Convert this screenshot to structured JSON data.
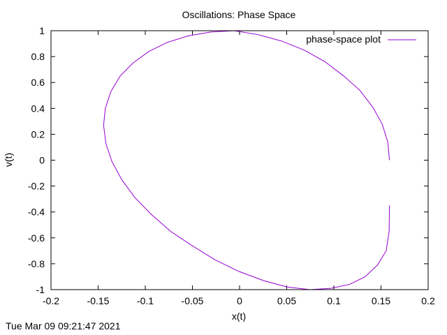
{
  "timestamp": "Tue Mar 09 09:21:47 2021",
  "chart_data": {
    "type": "line",
    "title": "Oscillations: Phase Space",
    "xlabel": "x(t)",
    "ylabel": "v(t)",
    "xlim": [
      -0.2,
      0.2
    ],
    "ylim": [
      -1,
      1
    ],
    "x_ticks": [
      -0.2,
      -0.15,
      -0.1,
      -0.05,
      0,
      0.05,
      0.1,
      0.15,
      0.2
    ],
    "x_tick_labels": [
      "-0.2",
      "-0.15",
      "-0.1",
      "-0.05",
      "0",
      "0.05",
      "0.1",
      "0.15",
      "0.2"
    ],
    "y_ticks": [
      -1,
      -0.8,
      -0.6,
      -0.4,
      -0.2,
      0,
      0.2,
      0.4,
      0.6,
      0.8,
      1
    ],
    "y_tick_labels": [
      "-1",
      "-0.8",
      "-0.6",
      "-0.4",
      "-0.2",
      "0",
      "0.2",
      "0.4",
      "0.6",
      "0.8",
      "1"
    ],
    "grid": false,
    "legend_position": "top-right",
    "series": [
      {
        "name": "phase-space plot",
        "color": "#9400d3",
        "x": [
          0.159,
          0.1572,
          0.1512,
          0.1412,
          0.1275,
          0.1105,
          0.0907,
          0.0686,
          0.0446,
          0.0194,
          -0.0058,
          -0.0306,
          -0.0544,
          -0.0765,
          -0.0962,
          -0.1131,
          -0.1266,
          -0.1365,
          -0.1424,
          -0.1442,
          -0.1418,
          -0.1354,
          -0.125,
          -0.1109,
          -0.0935,
          -0.0731,
          -0.0504,
          -0.026,
          -0.0005,
          0.0253,
          0.0506,
          0.0747,
          0.0968,
          0.1165,
          0.1332,
          0.1463,
          0.1555,
          0.1586,
          0.159
        ],
        "y": [
          0.0,
          0.14,
          0.28,
          0.41,
          0.54,
          0.65,
          0.76,
          0.85,
          0.92,
          0.97,
          1.0,
          0.99,
          0.96,
          0.91,
          0.84,
          0.75,
          0.65,
          0.53,
          0.4,
          0.27,
          0.13,
          -0.01,
          -0.15,
          -0.29,
          -0.42,
          -0.55,
          -0.66,
          -0.77,
          -0.86,
          -0.93,
          -0.98,
          -1.0,
          -0.99,
          -0.96,
          -0.9,
          -0.81,
          -0.7,
          -0.55,
          -0.35
        ]
      }
    ]
  }
}
